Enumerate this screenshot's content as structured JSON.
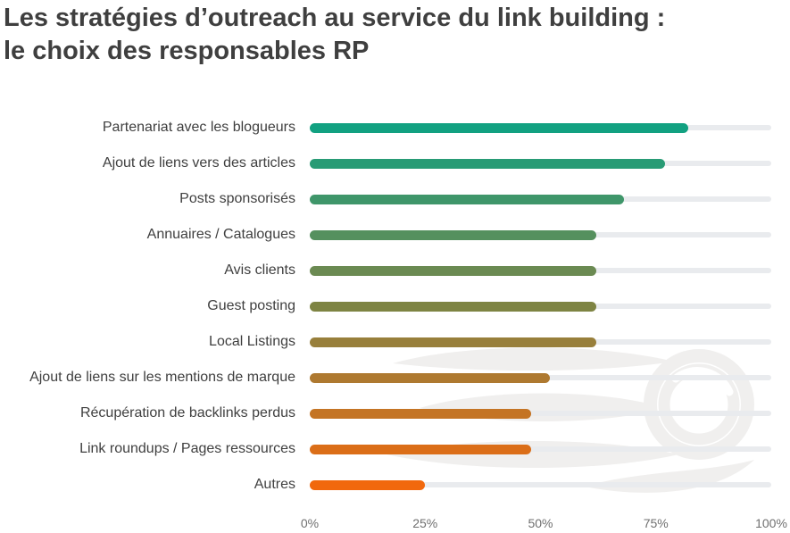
{
  "title": "Les stratégies d’outreach au service du link building : le choix des responsables RP",
  "chart_data": {
    "type": "bar",
    "orientation": "horizontal",
    "title": "Les stratégies d’outreach au service du link building : le choix des responsables RP",
    "categories": [
      "Partenariat avec les blogueurs",
      "Ajout de liens vers des articles",
      "Posts sponsorisés",
      "Annuaires / Catalogues",
      "Avis clients",
      "Guest posting",
      "Local Listings",
      "Ajout de liens sur les mentions de marque",
      "Récupération de backlinks perdus",
      "Link roundups / Pages ressources",
      "Autres"
    ],
    "values": [
      82,
      77,
      68,
      62,
      62,
      62,
      62,
      52,
      48,
      48,
      25
    ],
    "unit": "%",
    "bar_colors": [
      "#12A181",
      "#289B75",
      "#3F966A",
      "#55905E",
      "#6B8A52",
      "#7E8443",
      "#987F3B",
      "#AE7930",
      "#C47424",
      "#DB6E18",
      "#F1680D"
    ],
    "x_ticks": [
      "0%",
      "25%",
      "50%",
      "75%",
      "100%"
    ],
    "x_tick_values": [
      0,
      25,
      50,
      75,
      100
    ],
    "xlim": [
      0,
      100
    ],
    "grid": false,
    "legend": "none",
    "track_color": "#e9ebee",
    "watermark": "semrush-fireball-logo"
  },
  "colors": {
    "background": "#ffffff",
    "title_text": "#3f3f3f",
    "label_text": "#3f3f3f",
    "axis_text": "#6f6f6f",
    "watermark_gray": "#f0efee"
  }
}
